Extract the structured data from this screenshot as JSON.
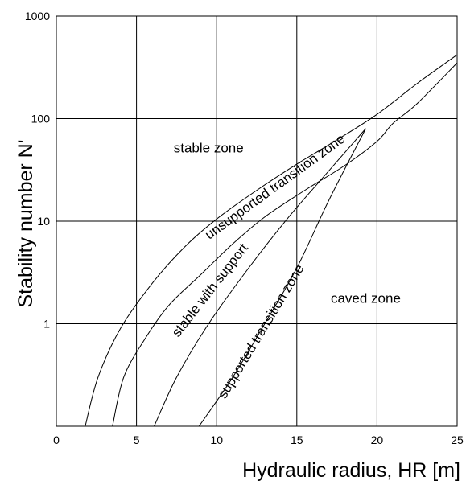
{
  "chart_data": {
    "type": "line",
    "title": "",
    "xlabel": "Hydraulic radius, HR [m]",
    "ylabel": "Stability number N'",
    "xlim": [
      0,
      25
    ],
    "ylim": [
      0.1,
      1000
    ],
    "yscale": "log",
    "grid": true,
    "x_ticks": [
      "0",
      "5",
      "10",
      "15",
      "20",
      "25"
    ],
    "y_ticks": [
      "1",
      "10",
      "100",
      "1000"
    ],
    "series": [
      {
        "x": [
          1.8,
          2.6,
          4.0,
          6.0,
          8.0,
          10.0,
          12.5,
          15.0,
          17.5,
          20.0,
          22.5,
          25.0
        ],
        "y": [
          0.1,
          0.3,
          0.9,
          2.5,
          5.6,
          10.5,
          20,
          36,
          62,
          110,
          220,
          420
        ]
      },
      {
        "x": [
          3.5,
          4.2,
          5.5,
          7.0,
          9.0,
          11.0,
          13.0,
          15.5,
          18.0,
          20.0,
          21.0,
          22.5,
          25.0
        ],
        "y": [
          0.1,
          0.3,
          0.7,
          1.5,
          3.0,
          6.0,
          11,
          20,
          35,
          60,
          90,
          140,
          350
        ]
      },
      {
        "x": [
          6.1,
          7.5,
          9.5,
          12.0,
          14.5,
          17.0,
          19.3
        ],
        "y": [
          0.1,
          0.3,
          1.0,
          3.5,
          11,
          31,
          80
        ]
      },
      {
        "x": [
          8.9,
          11.0,
          13.0,
          15.0,
          17.0,
          19.3
        ],
        "y": [
          0.1,
          0.3,
          1.0,
          3.5,
          16,
          80
        ]
      }
    ],
    "annotations": [
      {
        "text": "stable zone",
        "x": 9.5,
        "y": 47
      },
      {
        "text": "unsupported transition zone",
        "x": 13.8,
        "y": 20
      },
      {
        "text": "stable with support",
        "x": 9.8,
        "y": 2.0
      },
      {
        "text": "supported transition zone",
        "x": 13.0,
        "y": 0.8
      },
      {
        "text": "caved zone",
        "x": 19.3,
        "y": 1.6
      }
    ]
  }
}
